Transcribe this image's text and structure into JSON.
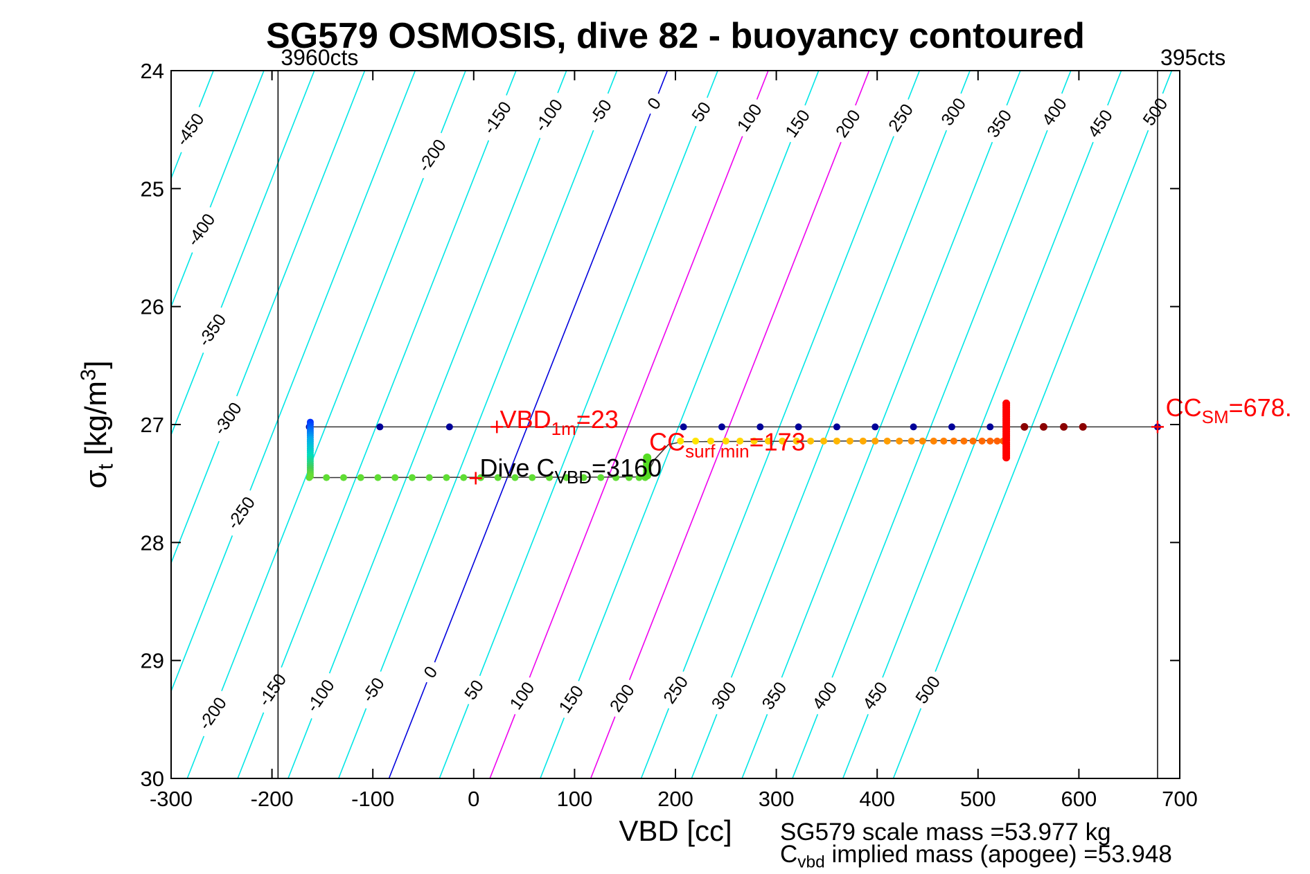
{
  "figure": {
    "title": "SG579 OSMOSIS, dive 82 - buoyancy contoured",
    "x_axis_label": "VBD [cc]",
    "y_axis_label": {
      "symbol": "σ",
      "sub": "t",
      "unit_pre": " [kg/m",
      "sup": "3",
      "unit_post": "]"
    },
    "footer": {
      "line1": "SG579 scale mass =53.977 kg",
      "line2": {
        "pre": "C",
        "sub": "vbd",
        "rest": " implied mass (apogee) =53.948"
      }
    }
  },
  "chart_data": {
    "type": "scatter",
    "title": "SG579 OSMOSIS, dive 82 - buoyancy contoured",
    "xlabel": "VBD [cc]",
    "ylabel": "sigma_t [kg/m^3]",
    "x_axis": {
      "min": -300,
      "max": 700,
      "ticks": [
        -300,
        -200,
        -100,
        0,
        100,
        200,
        300,
        400,
        500,
        600,
        700
      ]
    },
    "y_axis": {
      "min": 24,
      "max": 30,
      "inverted": true,
      "ticks": [
        24,
        25,
        26,
        27,
        28,
        29,
        30
      ]
    },
    "buoyancy_contours": {
      "model": {
        "vbd_at_sigma24_b0": 192,
        "cc_per_gram": 1.0,
        "dvbd_dsigma": -46
      },
      "default_color": "#00e6e6",
      "highlight_colors": {
        "0": "#0000dd",
        "100": "#ee00ee",
        "200": "#ee00ee"
      },
      "levels": [
        {
          "value": -450,
          "labels_at_sigma": [
            24.5
          ]
        },
        {
          "value": -400,
          "labels_at_sigma": [
            25.35
          ]
        },
        {
          "value": -350,
          "labels_at_sigma": [
            26.2
          ]
        },
        {
          "value": -300,
          "labels_at_sigma": [
            26.95
          ]
        },
        {
          "value": -250,
          "labels_at_sigma": [
            27.75
          ]
        },
        {
          "value": -200,
          "labels_at_sigma": [
            24.72,
            29.45
          ]
        },
        {
          "value": -150,
          "labels_at_sigma": [
            24.4,
            29.25
          ]
        },
        {
          "value": -100,
          "labels_at_sigma": [
            24.38,
            29.3
          ]
        },
        {
          "value": -50,
          "labels_at_sigma": [
            24.35,
            29.25
          ]
        },
        {
          "value": 0,
          "labels_at_sigma": [
            24.28,
            29.1
          ]
        },
        {
          "value": 50,
          "labels_at_sigma": [
            24.35,
            29.25
          ]
        },
        {
          "value": 100,
          "labels_at_sigma": [
            24.4,
            29.3
          ]
        },
        {
          "value": 150,
          "labels_at_sigma": [
            24.45,
            29.33
          ]
        },
        {
          "value": 200,
          "labels_at_sigma": [
            24.45,
            29.32
          ]
        },
        {
          "value": 250,
          "labels_at_sigma": [
            24.4,
            29.25
          ]
        },
        {
          "value": 300,
          "labels_at_sigma": [
            24.35,
            29.3
          ]
        },
        {
          "value": 350,
          "labels_at_sigma": [
            24.45,
            29.3
          ]
        },
        {
          "value": 400,
          "labels_at_sigma": [
            24.35,
            29.3
          ]
        },
        {
          "value": 450,
          "labels_at_sigma": [
            24.45,
            29.3
          ]
        },
        {
          "value": 500,
          "labels_at_sigma": [
            24.35,
            29.25
          ]
        }
      ]
    },
    "count_ref_lines": [
      {
        "vbd": -194,
        "label": "3960cts"
      },
      {
        "vbd": 678,
        "label": "395cts"
      }
    ],
    "track_lines": [
      {
        "color": "#333333",
        "width": 1.5,
        "points": [
          [
            -163,
            27.02
          ],
          [
            678,
            27.02
          ]
        ]
      },
      {
        "color": "#333333",
        "width": 1.5,
        "points": [
          [
            -162,
            27.005
          ],
          [
            -162,
            27.45
          ]
        ]
      },
      {
        "color": "#333333",
        "width": 1.5,
        "points": [
          [
            -162,
            27.45
          ],
          [
            160,
            27.445
          ],
          [
            172,
            27.42
          ],
          [
            179,
            27.3
          ],
          [
            193,
            27.17
          ],
          [
            207,
            27.145
          ],
          [
            526,
            27.135
          ]
        ]
      },
      {
        "color": "#333333",
        "width": 1.5,
        "points": [
          [
            528,
            26.82
          ],
          [
            528,
            27.28
          ]
        ]
      }
    ],
    "series": [
      {
        "name": "surface-points",
        "sigma": 27.02,
        "marker_r": 5,
        "color": "#000099",
        "vbd_list": [
          -163,
          -93,
          -24,
          208,
          246,
          284,
          322,
          360,
          398,
          436,
          474,
          512,
          678
        ]
      },
      {
        "name": "climb-points",
        "sigma": 27.14,
        "marker_r": 5,
        "color_stops": [
          [
            205,
            "#ffe800"
          ],
          [
            330,
            "#ffc400"
          ],
          [
            430,
            "#ff9500"
          ],
          [
            528,
            "#ff5a00"
          ]
        ],
        "vbd_list": [
          205,
          220,
          235,
          250,
          264,
          278,
          292,
          306,
          320,
          334,
          347,
          360,
          373,
          386,
          398,
          410,
          422,
          434,
          445,
          456,
          466,
          476,
          486,
          495,
          504,
          512,
          519,
          525,
          528
        ]
      },
      {
        "name": "dive-points",
        "sigma": 27.45,
        "marker_r": 5,
        "color": "#5fdd33",
        "vbd_list": [
          -163,
          -146,
          -129,
          -112,
          -95,
          -78,
          -61,
          -44,
          -27,
          -10,
          7,
          24,
          41,
          58,
          75,
          92,
          109,
          126,
          141,
          154,
          164,
          170
        ]
      },
      {
        "name": "dive-start-profile",
        "vbd": -162,
        "sigma_range": [
          26.98,
          27.44
        ],
        "n": 26,
        "marker_r": 5,
        "color_stops": [
          [
            26.98,
            "#0033ff"
          ],
          [
            27.13,
            "#00aaee"
          ],
          [
            27.27,
            "#00ddbb"
          ],
          [
            27.38,
            "#44cc55"
          ],
          [
            27.44,
            "#66dd33"
          ]
        ]
      },
      {
        "name": "apogee-profile",
        "vbd": 528,
        "sigma_range": [
          26.82,
          27.28
        ],
        "n": 26,
        "marker_r": 5.5,
        "color": "#ff0000"
      },
      {
        "name": "surf-min-blob",
        "vbd": 172,
        "sigma_range": [
          27.28,
          27.43
        ],
        "n": 8,
        "marker_r": 6,
        "color": "#55dd22"
      },
      {
        "name": "post-surface-points",
        "sigma": 27.02,
        "marker_r": 5.5,
        "color": "#8b0000",
        "vbd_list": [
          546,
          565,
          585,
          604
        ]
      }
    ],
    "plus_markers": [
      {
        "vbd": 23,
        "sigma": 27.02
      },
      {
        "vbd": 2,
        "sigma": 27.455
      },
      {
        "vbd": 678,
        "sigma": 27.02
      }
    ],
    "annotations": [
      {
        "name": "vbd-1m",
        "color": "#ff0000",
        "x_vbd": 26,
        "y_sigma": 27.03,
        "parts": [
          {
            "t": "VBD"
          },
          {
            "t": "1m",
            "sub": true
          },
          {
            "t": "=23"
          }
        ]
      },
      {
        "name": "cc-surf-min",
        "color": "#ff0000",
        "x_vbd": 174,
        "y_sigma": 27.22,
        "parts": [
          {
            "t": "CC"
          },
          {
            "t": "surf min",
            "sub": true
          },
          {
            "t": "=173"
          }
        ]
      },
      {
        "name": "dive-c-vbd",
        "color": "#000000",
        "x_vbd": 6,
        "y_sigma": 27.44,
        "parts": [
          {
            "t": "Dive C"
          },
          {
            "t": "VBD",
            "sub": true
          },
          {
            "t": "=3160"
          }
        ]
      },
      {
        "name": "cc-sm",
        "color": "#ff0000",
        "x_vbd": 686,
        "y_sigma": 26.93,
        "parts": [
          {
            "t": "CC"
          },
          {
            "t": "SM",
            "sub": true
          },
          {
            "t": "=678."
          }
        ]
      }
    ]
  }
}
